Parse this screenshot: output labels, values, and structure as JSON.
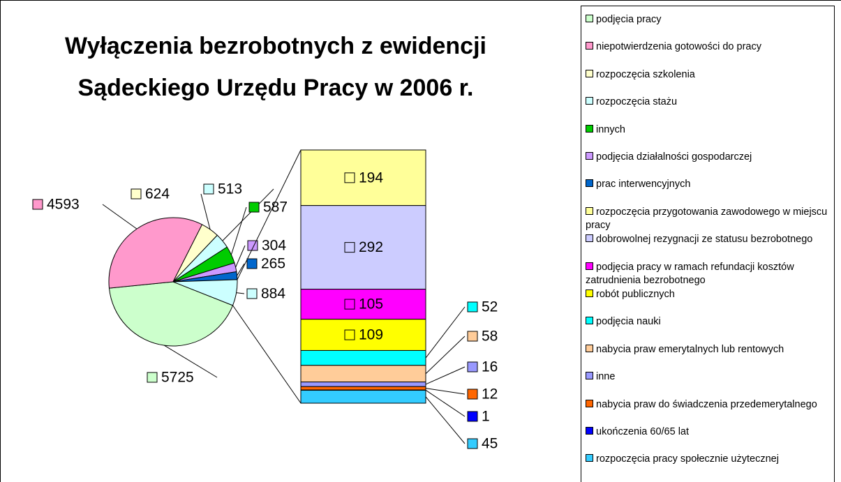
{
  "chart_data": {
    "type": "pie",
    "title": [
      "Wyłączenia bezrobotnych z ewidencji",
      "Sądeckiego Urzędu Pracy w 2006 r."
    ],
    "slices": [
      {
        "name": "podjęcia pracy",
        "color": "#ccffcc",
        "value": 5725
      },
      {
        "name": "niepotwierdzenia gotowości do pracy",
        "color": "#ff99cc",
        "value": 4593
      },
      {
        "name": "rozpoczęcia szkolenia",
        "color": "#ffffcc",
        "value": 624
      },
      {
        "name": "rozpoczęcia stażu",
        "color": "#ccffff",
        "value": 513
      },
      {
        "name": "innych",
        "color": "#00cc00",
        "value": 587
      },
      {
        "name": "podjęcia działalności gospodarczej",
        "color": "#cc99ff",
        "value": 304
      },
      {
        "name": "prac interwencyjnych",
        "color": "#0066cc",
        "value": 265
      }
    ],
    "other": {
      "value": 884,
      "color": "#ccffff"
    },
    "bar": [
      {
        "name": "rozpoczęcia przygotowania zawodowego w miejscu pracy",
        "color": "#ffff99",
        "value": 194
      },
      {
        "name": "dobrowolnej rezygnacji ze statusu bezrobotnego",
        "color": "#ccccff",
        "value": 292
      },
      {
        "name": "podjęcia pracy w ramach refundacji kosztów zatrudnienia bezrobotnego",
        "color": "#ff00ff",
        "value": 105
      },
      {
        "name": "robót publicznych",
        "color": "#ffff00",
        "value": 109
      },
      {
        "name": "podjęcia nauki",
        "color": "#00ffff",
        "value": 52
      },
      {
        "name": "nabycia praw emerytalnych lub rentowych",
        "color": "#ffcc99",
        "value": 58
      },
      {
        "name": "inne",
        "color": "#9999ff",
        "value": 16
      },
      {
        "name": "nabycia praw do świadczenia przedemerytalnego",
        "color": "#ff6600",
        "value": 12
      },
      {
        "name": "ukończenia 60/65 lat",
        "color": "#0000ff",
        "value": 1
      },
      {
        "name": "rozpoczęcia pracy społecznie użytecznej",
        "color": "#33ccff",
        "value": 45
      }
    ],
    "legend": true
  }
}
